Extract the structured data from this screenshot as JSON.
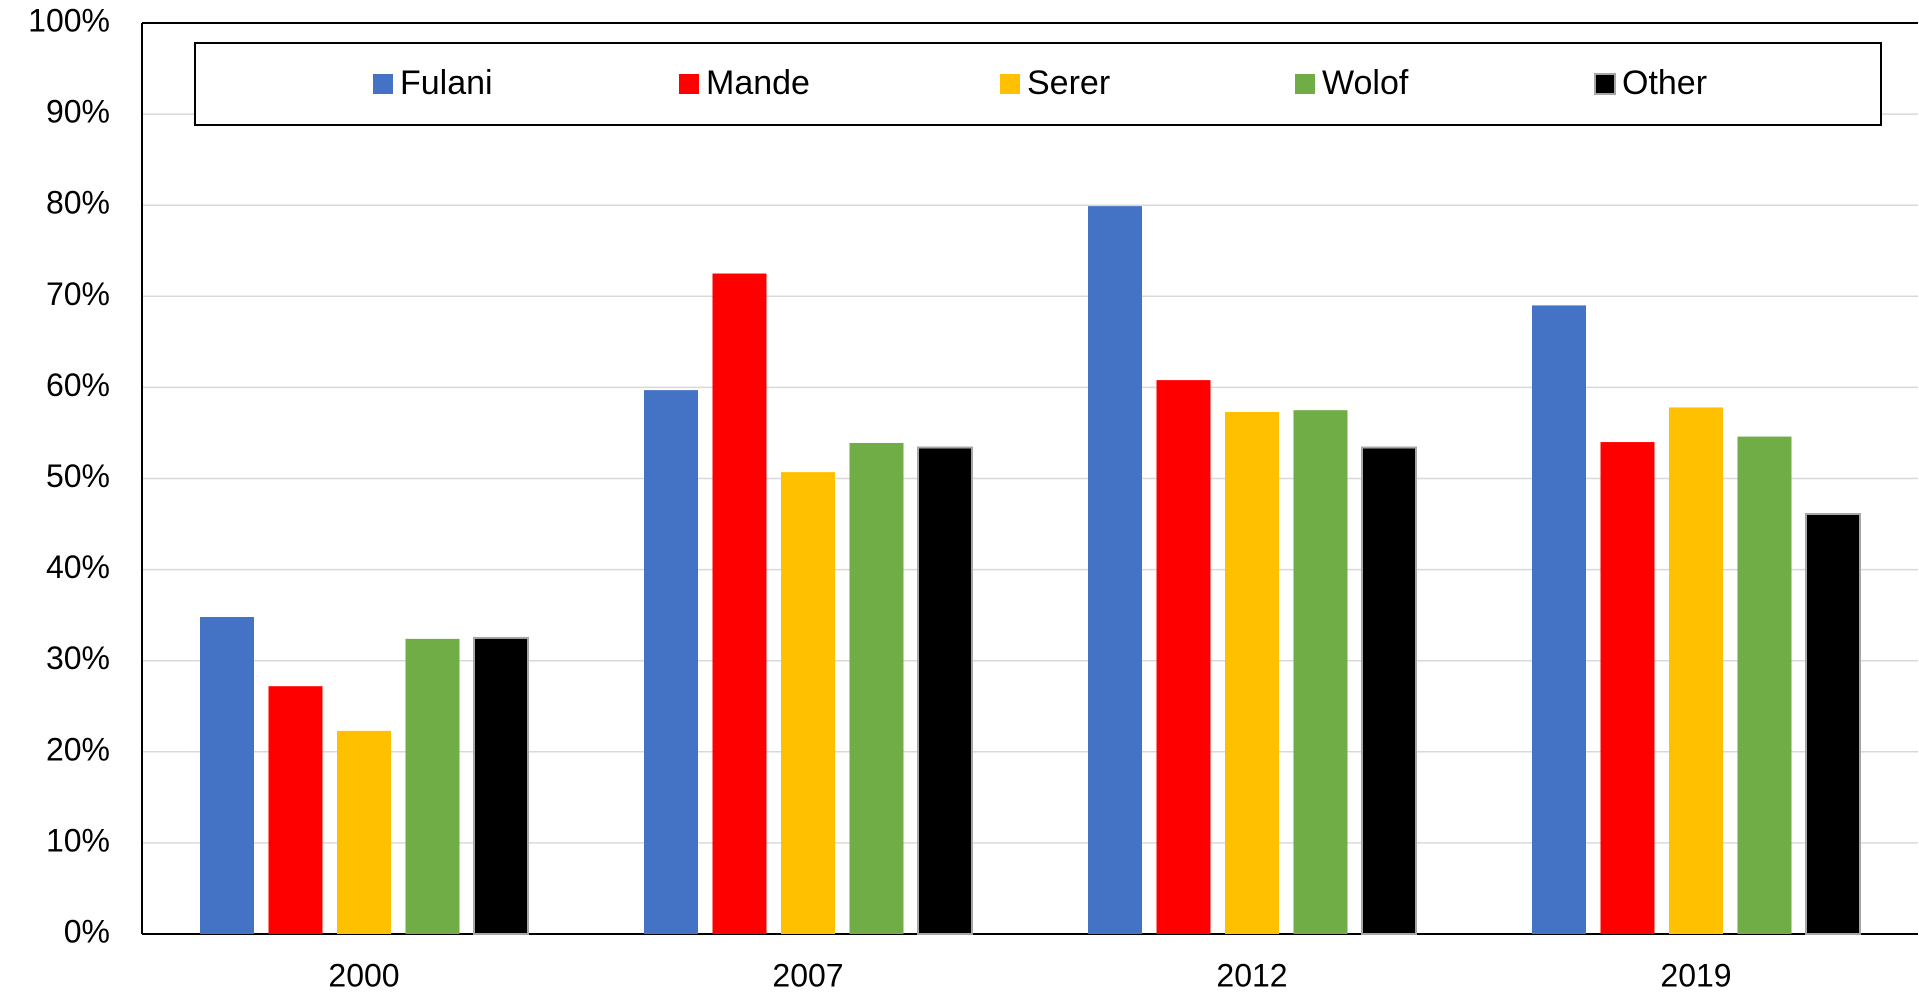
{
  "chart_data": {
    "type": "bar",
    "categories": [
      "2000",
      "2007",
      "2012",
      "2019"
    ],
    "series": [
      {
        "name": "Fulani",
        "color": "#4472c4",
        "values": [
          34.8,
          59.7,
          79.9,
          69.0
        ]
      },
      {
        "name": "Mande",
        "color": "#ff0000",
        "values": [
          27.2,
          72.5,
          60.8,
          54.0
        ]
      },
      {
        "name": "Serer",
        "color": "#ffc000",
        "values": [
          22.3,
          50.7,
          57.3,
          57.8
        ]
      },
      {
        "name": "Wolof",
        "color": "#70ad47",
        "values": [
          32.4,
          53.9,
          57.5,
          54.6
        ]
      },
      {
        "name": "Other",
        "color": "#000000",
        "values": [
          32.5,
          53.4,
          53.4,
          46.1
        ]
      }
    ],
    "ylim": [
      0,
      100
    ],
    "yticks": [
      {
        "value": 0,
        "label": "0%"
      },
      {
        "value": 10,
        "label": "10%"
      },
      {
        "value": 20,
        "label": "20%"
      },
      {
        "value": 30,
        "label": "30%"
      },
      {
        "value": 40,
        "label": "40%"
      },
      {
        "value": 50,
        "label": "50%"
      },
      {
        "value": 60,
        "label": "60%"
      },
      {
        "value": 70,
        "label": "70%"
      },
      {
        "value": 80,
        "label": "80%"
      },
      {
        "value": 90,
        "label": "90%"
      },
      {
        "value": 100,
        "label": "100%"
      }
    ],
    "grid": true,
    "legend": "top"
  }
}
